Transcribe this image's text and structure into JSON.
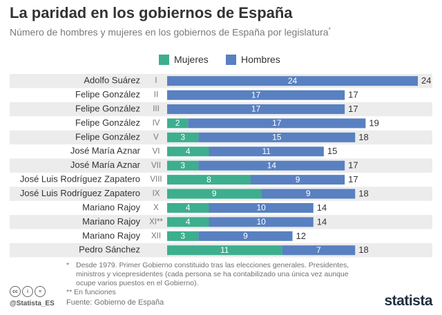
{
  "title": "La paridad en los gobiernos de España",
  "subtitle": "Número de hombres y mujeres en los gobiernos de España por legislatura",
  "subtitle_mark": "*",
  "colors": {
    "mujeres": "#3dae8e",
    "hombres": "#5980c0",
    "row_shade": "#ececec",
    "label_text": "#333333",
    "total_text": "#333333"
  },
  "chart_data": {
    "type": "bar",
    "stacked": true,
    "orientation": "horizontal",
    "legend": [
      "Mujeres",
      "Hombres"
    ],
    "categories": [
      "Adolfo Suárez",
      "Felipe González",
      "Felipe González",
      "Felipe González",
      "Felipe González",
      "José María Aznar",
      "José María Aznar",
      "José Luis Rodríguez Zapatero",
      "José Luis Rodríguez Zapatero",
      "Mariano Rajoy",
      "Mariano Rajoy",
      "Mariano Rajoy",
      "Pedro Sánchez"
    ],
    "legislaturas": [
      "I",
      "II",
      "III",
      "IV",
      "V",
      "VI",
      "VII",
      "VIII",
      "IX",
      "X",
      "XI**",
      "XII",
      ""
    ],
    "series": [
      {
        "name": "Mujeres",
        "values": [
          0,
          0,
          0,
          2,
          3,
          4,
          3,
          8,
          9,
          4,
          4,
          3,
          11
        ]
      },
      {
        "name": "Hombres",
        "values": [
          24,
          17,
          17,
          17,
          15,
          11,
          14,
          9,
          9,
          10,
          10,
          9,
          7
        ]
      }
    ],
    "totals": [
      24,
      17,
      17,
      19,
      18,
      15,
      17,
      17,
      18,
      14,
      14,
      12,
      18
    ],
    "xlim": [
      0,
      24
    ]
  },
  "footnotes": {
    "note1_mark": "*",
    "note1": "Desde 1979. Primer Gobierno constituido tras las elecciones generales. Presidentes, ministros y vicepresidentes (cada persona se ha contabilizado una única vez aunque ocupe varios puestos en el Gobierno).",
    "note2": "** En funciones"
  },
  "source": "Fuente: Gobierno de España",
  "handle": "@Statista_ES",
  "brand": "statista",
  "cc_icons": [
    "cc",
    "i",
    "="
  ]
}
